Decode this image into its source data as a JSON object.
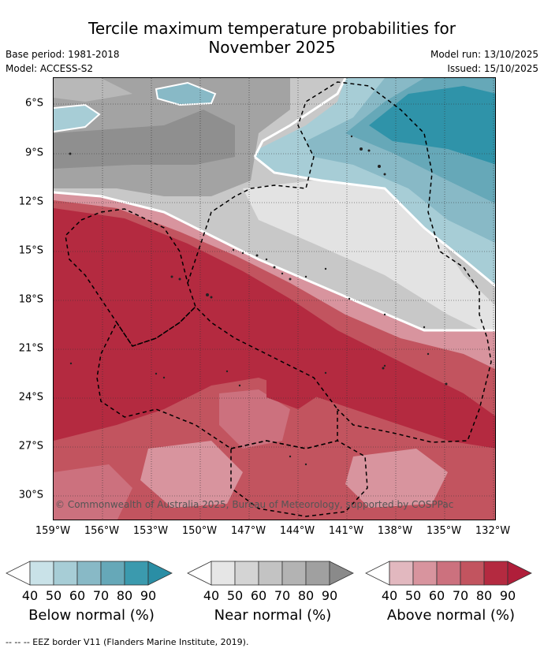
{
  "title_line1": "Tercile maximum temperature probabilities for",
  "title_line2": "November 2025",
  "meta": {
    "base_period": "Base period: 1981-2018",
    "model": "Model: ACCESS-S2",
    "model_run": "Model run: 13/10/2025",
    "issued": "Issued: 15/10/2025"
  },
  "map": {
    "lat_labels": [
      "6°S",
      "9°S",
      "12°S",
      "15°S",
      "18°S",
      "21°S",
      "24°S",
      "27°S",
      "30°S"
    ],
    "lon_labels": [
      "159°W",
      "156°W",
      "153°W",
      "150°W",
      "147°W",
      "144°W",
      "141°W",
      "138°W",
      "135°W",
      "132°W"
    ],
    "copyright": "© Commonwealth of Australia 2025, Bureau of Meteorology, supported by COSPPac"
  },
  "legends": [
    {
      "name": "Below normal (%)",
      "ticks": [
        "40",
        "50",
        "60",
        "70",
        "80",
        "90"
      ],
      "colors": [
        "#ffffff",
        "#c9e2e8",
        "#a7cdd6",
        "#88b9c6",
        "#66a8b8",
        "#3b9aae",
        "#2a8ea5"
      ]
    },
    {
      "name": "Near normal (%)",
      "ticks": [
        "40",
        "50",
        "60",
        "70",
        "80",
        "90"
      ],
      "colors": [
        "#ffffff",
        "#e6e6e6",
        "#d4d4d4",
        "#c3c3c3",
        "#b3b3b3",
        "#a0a0a0",
        "#8a8a8a"
      ]
    },
    {
      "name": "Above normal (%)",
      "ticks": [
        "40",
        "50",
        "60",
        "70",
        "80",
        "90"
      ],
      "colors": [
        "#ffffff",
        "#e2b8bf",
        "#d8949e",
        "#cc717e",
        "#c2545f",
        "#b42a40",
        "#b01e3a"
      ]
    }
  ],
  "footer": "-- -- -- EEZ border V11 (Flanders Marine Institute, 2019)."
}
